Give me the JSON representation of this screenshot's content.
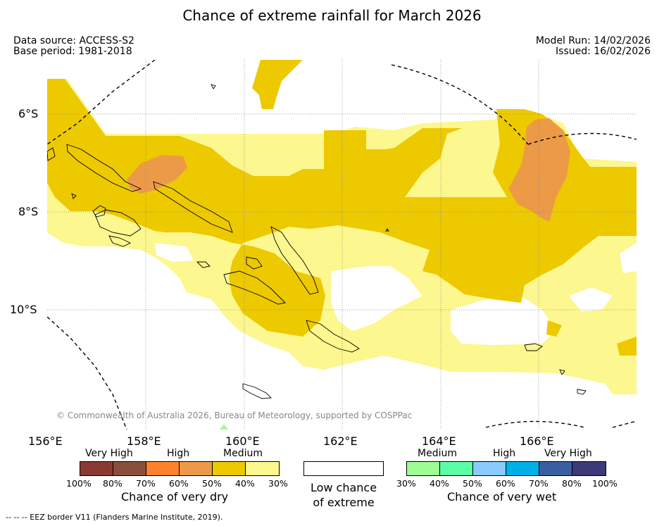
{
  "title": "Chance of extreme rainfall for March 2026",
  "meta": {
    "data_source": "Data source: ACCESS-S2",
    "base_period": "Base period: 1981-2018",
    "model_run": "Model Run: 14/02/2026",
    "issued": "Issued: 16/02/2026"
  },
  "axes": {
    "lat_labels": [
      "6°S",
      "8°S",
      "10°S"
    ],
    "lon_labels": [
      "156°E",
      "158°E",
      "160°E",
      "162°E",
      "164°E",
      "166°E"
    ]
  },
  "copyright": "© Commonwealth of Australia 2026, Bureau of Meteorology, supported by COSPPac",
  "legend": {
    "dry": {
      "levels": [
        "Very High",
        "High",
        "Medium"
      ],
      "colors": [
        "#8b3a33",
        "#8c4e3c",
        "#fd822b",
        "#ec9a48",
        "#edc900",
        "#fcf78e"
      ],
      "ticks": [
        "100%",
        "80%",
        "70%",
        "60%",
        "50%",
        "40%",
        "30%"
      ],
      "caption": "Chance of very dry"
    },
    "neutral": {
      "caption_line1": "Low chance",
      "caption_line2": "of extreme"
    },
    "wet": {
      "levels": [
        "Medium",
        "High",
        "Very High"
      ],
      "colors": [
        "#9dfc94",
        "#5dfda5",
        "#8bcafc",
        "#00b0e8",
        "#3a5ea0",
        "#3d3a79"
      ],
      "ticks": [
        "30%",
        "40%",
        "50%",
        "60%",
        "70%",
        "80%",
        "100%"
      ],
      "caption": "Chance of very wet"
    }
  },
  "footer": "--  --  -- EEZ border V11 (Flanders Marine Institute, 2019)."
}
